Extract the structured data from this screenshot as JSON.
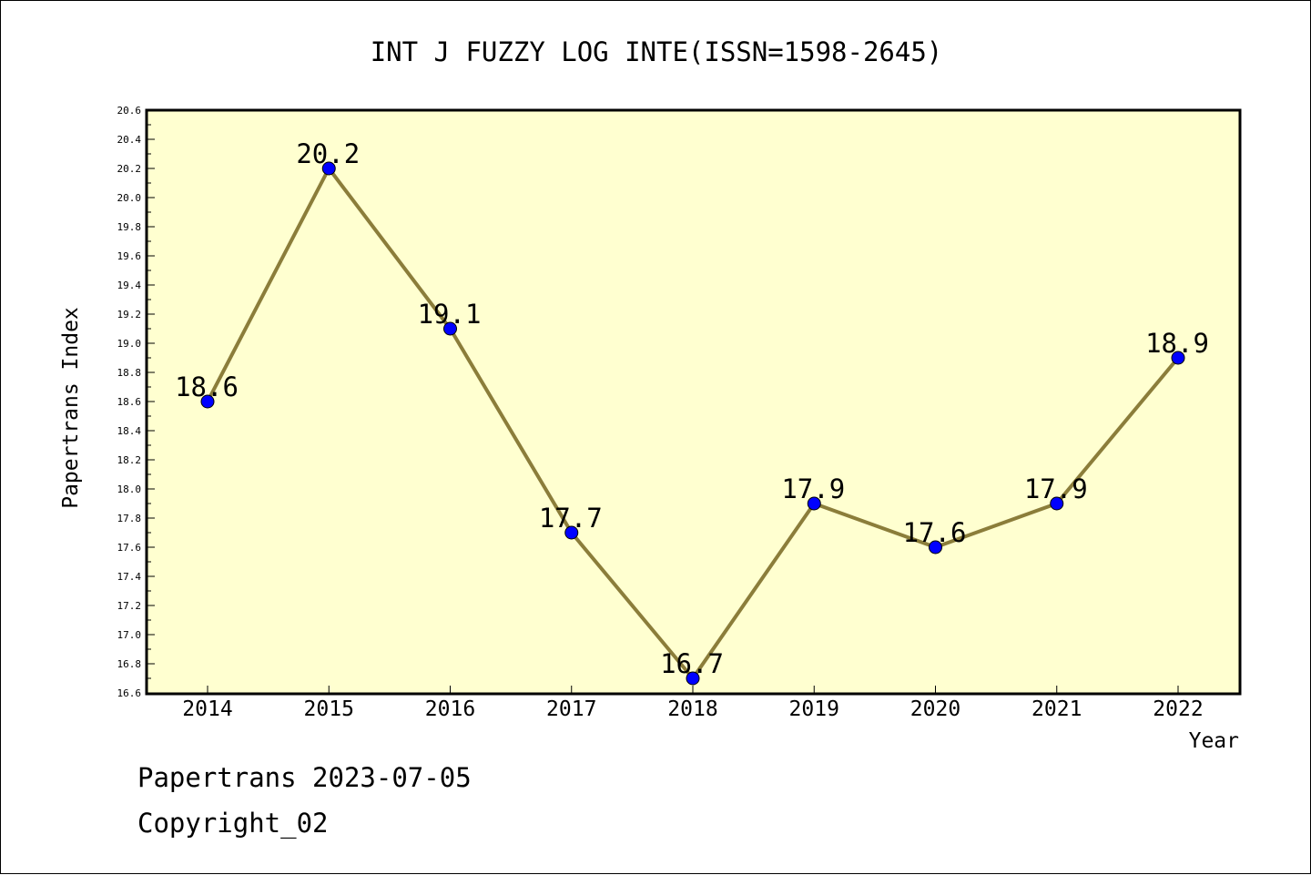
{
  "chart_data": {
    "type": "line",
    "title": "INT J FUZZY LOG INTE(ISSN=1598-2645)",
    "xlabel": "Year",
    "ylabel": "Papertrans Index",
    "categories": [
      "2014",
      "2015",
      "2016",
      "2017",
      "2018",
      "2019",
      "2020",
      "2021",
      "2022"
    ],
    "values": [
      18.6,
      20.2,
      19.1,
      17.7,
      16.7,
      17.9,
      17.6,
      17.9,
      18.9
    ],
    "data_labels": [
      "18.6",
      "20.2",
      "19.1",
      "17.7",
      "16.7",
      "17.9",
      "17.6",
      "17.9",
      "18.9"
    ],
    "ylim": [
      16.6,
      20.6
    ],
    "yticks": [
      "16.6",
      "16.8",
      "17.0",
      "17.2",
      "17.4",
      "17.6",
      "17.8",
      "18.0",
      "18.2",
      "18.4",
      "18.6",
      "18.8",
      "19.0",
      "19.2",
      "19.4",
      "19.6",
      "19.8",
      "20.0",
      "20.2",
      "20.4",
      "20.6"
    ],
    "grid": false,
    "colors": {
      "plot_background": "#ffffd0",
      "line": "#8b7d3a",
      "marker": "#0000ff"
    }
  },
  "footer": {
    "line1": "Papertrans 2023-07-05",
    "line2": "Copyright_02"
  }
}
